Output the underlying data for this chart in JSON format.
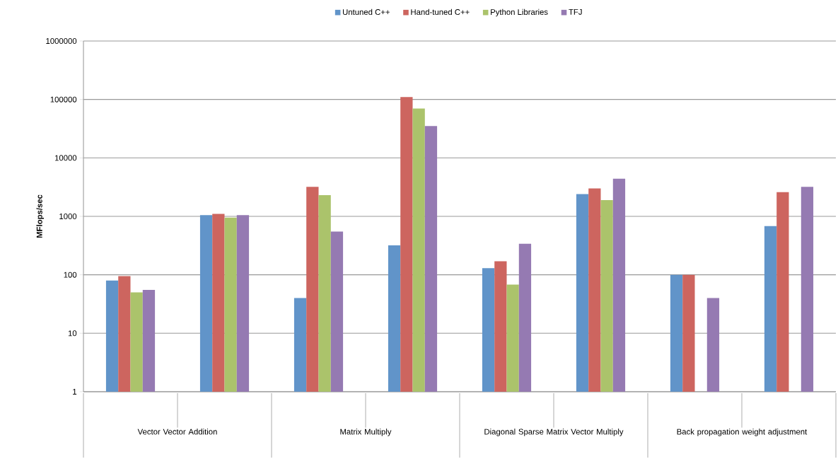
{
  "chart_data": {
    "type": "bar",
    "ylabel": "MFlops/sec",
    "categories": [
      null,
      null,
      null,
      null,
      null,
      null,
      null,
      null
    ],
    "series": [
      {
        "name": "Untuned C++",
        "color": "#6194c9",
        "values": [
          80,
          1050,
          40,
          320,
          130,
          2400,
          100,
          680
        ]
      },
      {
        "name": "Hand-tuned C++",
        "color": "#cd655f",
        "values": [
          95,
          1100,
          3200,
          110000,
          170,
          3000,
          100,
          2600
        ]
      },
      {
        "name": "Python Libraries",
        "color": "#abc36b",
        "values": [
          50,
          950,
          2300,
          70000,
          68,
          1900,
          null,
          null
        ]
      },
      {
        "name": "TFJ",
        "color": "#957ab2",
        "values": [
          55,
          1050,
          550,
          35000,
          340,
          4400,
          40,
          3200
        ]
      }
    ],
    "log": "y",
    "ylim": [
      1,
      1000000
    ],
    "yticks": [
      1,
      10,
      100,
      1000,
      10000,
      100000,
      1000000
    ],
    "grid": "y",
    "legend": "top",
    "annotations": [
      "Vector Vector Addition",
      "Matrix Multiply",
      "Diagonal Sparse Matrix Vector Multiply",
      "Back propagation weight adjustment"
    ]
  }
}
